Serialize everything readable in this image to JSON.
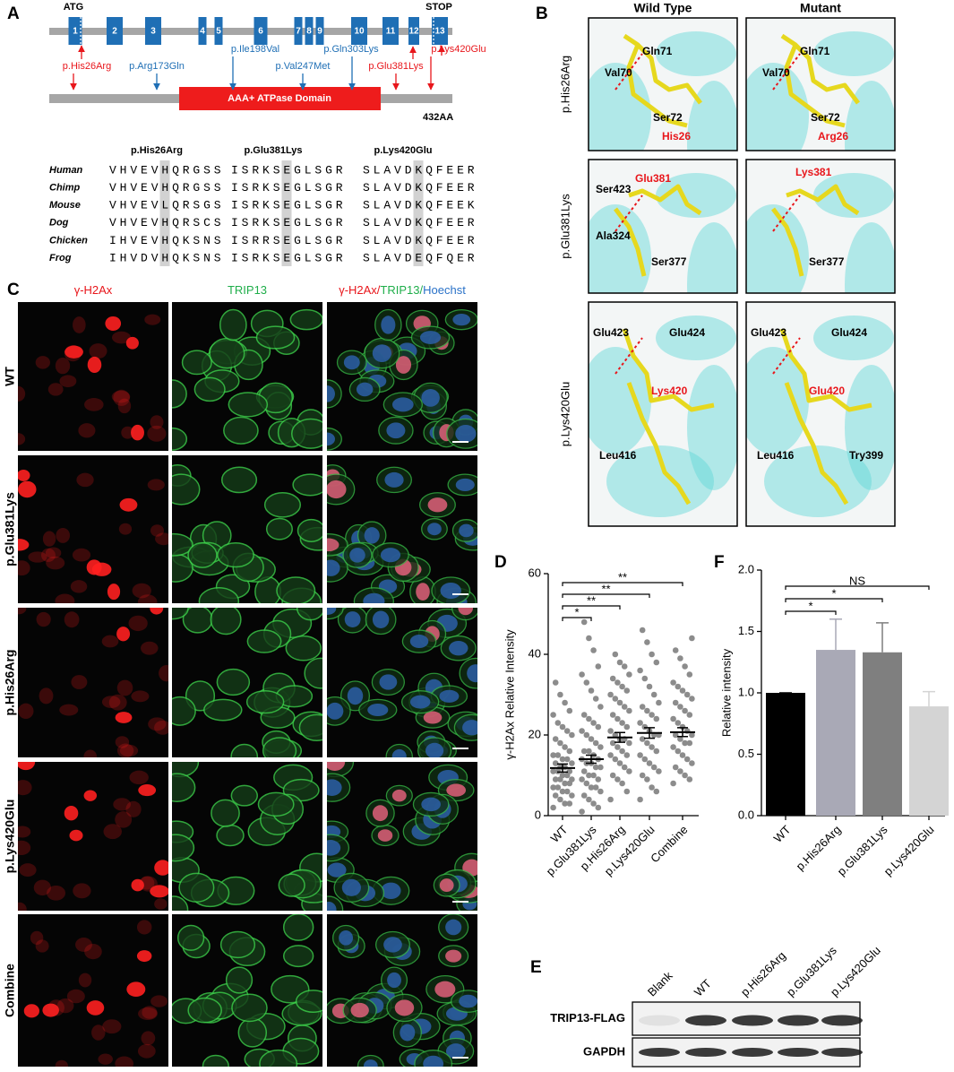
{
  "panel_labels": [
    "A",
    "B",
    "C",
    "D",
    "E",
    "F"
  ],
  "gene": {
    "start": "ATG",
    "stop": "STOP",
    "exons": [
      "1",
      "2",
      "3",
      "4",
      "5",
      "6",
      "7",
      "8",
      "9",
      "10",
      "11",
      "12",
      "13"
    ],
    "variants": [
      {
        "label": "p.His26Arg",
        "color": "#e8161b"
      },
      {
        "label": "p.Arg173Gln",
        "color": "#1f6fb5"
      },
      {
        "label": "p.Ile198Val",
        "color": "#1f6fb5"
      },
      {
        "label": "p.Val247Met",
        "color": "#1f6fb5"
      },
      {
        "label": "p.Gln303Lys",
        "color": "#1f6fb5"
      },
      {
        "label": "p.Glu381Lys",
        "color": "#e8161b"
      },
      {
        "label": "p.Lys420Glu",
        "color": "#e8161b"
      }
    ],
    "domain": "AAA+ ATPase Domain",
    "length": "432AA"
  },
  "alignment": {
    "headers": [
      "p.His26Arg",
      "p.Glu381Lys",
      "p.Lys420Glu"
    ],
    "species": [
      "Human",
      "Chimp",
      "Mouse",
      "Dog",
      "Chicken",
      "Frog"
    ],
    "sequences": [
      [
        "VHVEVHQRGSS",
        "ISRKSEGLSGR",
        "SLAVDKQFEER"
      ],
      [
        "VHVEVHQRGSS",
        "ISRKSEGLSGR",
        "SLAVDKQFEER"
      ],
      [
        "VHVEVLQRSGS",
        "ISRKSEGLSGR",
        "SLAVDKQFEEK"
      ],
      [
        "VHVEVHQRSCS",
        "ISRKSEGLSGR",
        "SLAVDKQFEER"
      ],
      [
        "IHVEVHQKSNS",
        "ISRRSEGLSGR",
        "SLAVDKQFEER"
      ],
      [
        "IHVDVHQKSNS",
        "ISRKSEGLSGR",
        "SLAVDEQFQER"
      ]
    ]
  },
  "structures": {
    "columns": [
      "Wild Type",
      "Mutant"
    ],
    "rows": [
      {
        "label": "p.His26Arg",
        "wild_type": [
          {
            "text": "Gln71",
            "color": "#000000"
          },
          {
            "text": "Val70",
            "color": "#000000"
          },
          {
            "text": "Ser72",
            "color": "#000000"
          },
          {
            "text": "His26",
            "color": "#e8161b"
          }
        ],
        "mutant": [
          {
            "text": "Gln71",
            "color": "#000000"
          },
          {
            "text": "Val70",
            "color": "#000000"
          },
          {
            "text": "Ser72",
            "color": "#000000"
          },
          {
            "text": "Arg26",
            "color": "#e8161b"
          }
        ]
      },
      {
        "label": "p.Glu381Lys",
        "wild_type": [
          {
            "text": "Glu381",
            "color": "#e8161b"
          },
          {
            "text": "Ser423",
            "color": "#000000"
          },
          {
            "text": "Ala324",
            "color": "#000000"
          },
          {
            "text": "Ser377",
            "color": "#000000"
          }
        ],
        "mutant": [
          {
            "text": "Lys381",
            "color": "#e8161b"
          },
          {
            "text": "Ser377",
            "color": "#000000"
          }
        ]
      },
      {
        "label": "p.Lys420Glu",
        "wild_type": [
          {
            "text": "Glu423",
            "color": "#000000"
          },
          {
            "text": "Glu424",
            "color": "#000000"
          },
          {
            "text": "Lys420",
            "color": "#e8161b"
          },
          {
            "text": "Leu416",
            "color": "#000000"
          }
        ],
        "mutant": [
          {
            "text": "Glu423",
            "color": "#000000"
          },
          {
            "text": "Glu424",
            "color": "#000000"
          },
          {
            "text": "Glu420",
            "color": "#e8161b"
          },
          {
            "text": "Leu416",
            "color": "#000000"
          },
          {
            "text": "Try399",
            "color": "#000000"
          }
        ]
      }
    ]
  },
  "microscopy": {
    "columns": [
      [
        {
          "text": "γ-H2Ax",
          "color": "#e8161b"
        }
      ],
      [
        {
          "text": "TRIP13",
          "color": "#1fae4a"
        }
      ],
      [
        {
          "text": "γ-H2Ax/",
          "color": "#e8161b"
        },
        {
          "text": "TRIP13/",
          "color": "#1fae4a"
        },
        {
          "text": "Hoechst",
          "color": "#2a72c8"
        }
      ]
    ],
    "rows": [
      "WT",
      "p.Glu381Lys",
      "p.His26Arg",
      "p.Lys420Glu",
      "Combine"
    ]
  },
  "blot": {
    "lanes": [
      "Blank",
      "WT",
      "p.His26Arg",
      "p.Glu381Lys",
      "p.Lys420Glu"
    ],
    "proteins": [
      "TRIP13-FLAG",
      "GAPDH"
    ]
  },
  "chart_data": [
    {
      "type": "dotplot",
      "ylabel": "γ-H2Ax Relative Intensity",
      "categories": [
        "WT",
        "p.Glu381Lys",
        "p.His26Arg",
        "p.Lys420Glu",
        "Combine"
      ],
      "points": [
        [
          2,
          3,
          3,
          4,
          5,
          5,
          6,
          6,
          7,
          7,
          8,
          8,
          9,
          9,
          9,
          10,
          10,
          11,
          11,
          11,
          12,
          12,
          13,
          13,
          14,
          14,
          15,
          15,
          16,
          17,
          18,
          19,
          20,
          21,
          22,
          23,
          25,
          26,
          28,
          30,
          33
        ],
        [
          1,
          2,
          3,
          4,
          5,
          6,
          7,
          7,
          8,
          9,
          9,
          10,
          10,
          11,
          12,
          12,
          13,
          13,
          14,
          14,
          15,
          16,
          16,
          17,
          18,
          19,
          20,
          21,
          22,
          23,
          24,
          25,
          27,
          29,
          31,
          33,
          35,
          37,
          41,
          44,
          48
        ],
        [
          4,
          6,
          8,
          9,
          10,
          11,
          12,
          13,
          14,
          15,
          15,
          16,
          17,
          18,
          18,
          19,
          19,
          20,
          21,
          22,
          23,
          24,
          25,
          26,
          27,
          28,
          29,
          30,
          31,
          32,
          33,
          34,
          35,
          37,
          38,
          40
        ],
        [
          4,
          6,
          7,
          9,
          10,
          11,
          12,
          13,
          14,
          15,
          16,
          17,
          18,
          19,
          20,
          20,
          21,
          22,
          23,
          24,
          25,
          26,
          27,
          28,
          30,
          32,
          34,
          36,
          38,
          40,
          43,
          46
        ],
        [
          8,
          9,
          10,
          11,
          12,
          13,
          14,
          15,
          16,
          17,
          18,
          18,
          19,
          20,
          20,
          21,
          22,
          23,
          24,
          25,
          26,
          27,
          28,
          29,
          30,
          31,
          32,
          33,
          35,
          37,
          39,
          41,
          44
        ]
      ],
      "means": [
        11.8,
        14,
        19.4,
        20.5,
        20.7
      ],
      "sem": [
        1,
        1,
        1.2,
        1.3,
        1.1
      ],
      "color": "#8c8c8c",
      "ylim": [
        0,
        60
      ],
      "yticks": [
        0,
        20,
        40,
        60
      ],
      "annotations": [
        "*",
        "**",
        "**",
        "**"
      ]
    },
    {
      "type": "bar",
      "ylabel": "Relative intensity",
      "categories": [
        "WT",
        "p.His26Arg",
        "p.Glu381Lys",
        "p.Lys420Glu"
      ],
      "values": [
        1,
        1.35,
        1.33,
        0.89
      ],
      "errors": [
        0,
        0.25,
        0.24,
        0.12
      ],
      "colors": [
        "#000000",
        "#a9a9b6",
        "#7f7f7f",
        "#d4d4d4"
      ],
      "ylim": [
        0,
        2
      ],
      "yticks": [
        {
          "value": 0,
          "label": "0.0"
        },
        {
          "value": 0.5,
          "label": "0.5"
        },
        {
          "value": 1,
          "label": "1.0"
        },
        {
          "value": 1.5,
          "label": "1.5"
        },
        {
          "value": 2,
          "label": "2.0"
        }
      ],
      "annotations": [
        "*",
        "*",
        "NS"
      ]
    }
  ]
}
